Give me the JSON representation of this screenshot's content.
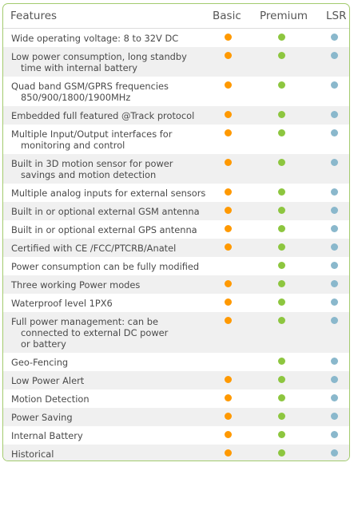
{
  "headers": {
    "feature": "Features",
    "basic": "Basic",
    "premium": "Premium",
    "lsr": "LSR"
  },
  "colors": {
    "basic": "#ff9900",
    "premium": "#8dc63f",
    "lsr": "#8ab8cc",
    "border": "#a3cb6e"
  },
  "rows": [
    {
      "lines": [
        "Wide operating voltage: 8 to 32V DC"
      ],
      "basic": true,
      "premium": true,
      "lsr": true
    },
    {
      "lines": [
        "Low power consumption, long standby",
        "time with internal battery"
      ],
      "basic": true,
      "premium": true,
      "lsr": true
    },
    {
      "lines": [
        "Quad band GSM/GPRS frequencies",
        "850/900/1800/1900MHz"
      ],
      "basic": true,
      "premium": true,
      "lsr": true
    },
    {
      "lines": [
        "Embedded full featured @Track protocol"
      ],
      "basic": true,
      "premium": true,
      "lsr": true
    },
    {
      "lines": [
        "Multiple Input/Output interfaces for",
        "monitoring and control"
      ],
      "basic": true,
      "premium": true,
      "lsr": true
    },
    {
      "lines": [
        "Built in 3D motion sensor for power",
        "savings and motion detection"
      ],
      "basic": true,
      "premium": true,
      "lsr": true
    },
    {
      "lines": [
        "Multiple analog inputs for external sensors"
      ],
      "basic": true,
      "premium": true,
      "lsr": true
    },
    {
      "lines": [
        "Built in or optional external GSM antenna"
      ],
      "basic": true,
      "premium": true,
      "lsr": true
    },
    {
      "lines": [
        "Built in or optional external GPS antenna"
      ],
      "basic": true,
      "premium": true,
      "lsr": true
    },
    {
      "lines": [
        "Certified with CE /FCC/PTCRB/Anatel"
      ],
      "basic": true,
      "premium": true,
      "lsr": true
    },
    {
      "lines": [
        "Power consumption can be fully modified"
      ],
      "basic": false,
      "premium": true,
      "lsr": true
    },
    {
      "lines": [
        "Three working Power modes"
      ],
      "basic": true,
      "premium": true,
      "lsr": true
    },
    {
      "lines": [
        "Waterproof level 1PX6"
      ],
      "basic": true,
      "premium": true,
      "lsr": true
    },
    {
      "lines": [
        "Full power management: can be",
        "connected to external DC power",
        "or battery"
      ],
      "basic": true,
      "premium": true,
      "lsr": true
    },
    {
      "lines": [
        "Geo-Fencing"
      ],
      "basic": false,
      "premium": true,
      "lsr": true
    },
    {
      "lines": [
        "Low Power Alert"
      ],
      "basic": true,
      "premium": true,
      "lsr": true
    },
    {
      "lines": [
        "Motion Detection"
      ],
      "basic": true,
      "premium": true,
      "lsr": true
    },
    {
      "lines": [
        "Power Saving"
      ],
      "basic": true,
      "premium": true,
      "lsr": true
    },
    {
      "lines": [
        "Internal Battery"
      ],
      "basic": true,
      "premium": true,
      "lsr": true
    },
    {
      "lines": [
        "Historical"
      ],
      "basic": true,
      "premium": true,
      "lsr": true
    }
  ]
}
